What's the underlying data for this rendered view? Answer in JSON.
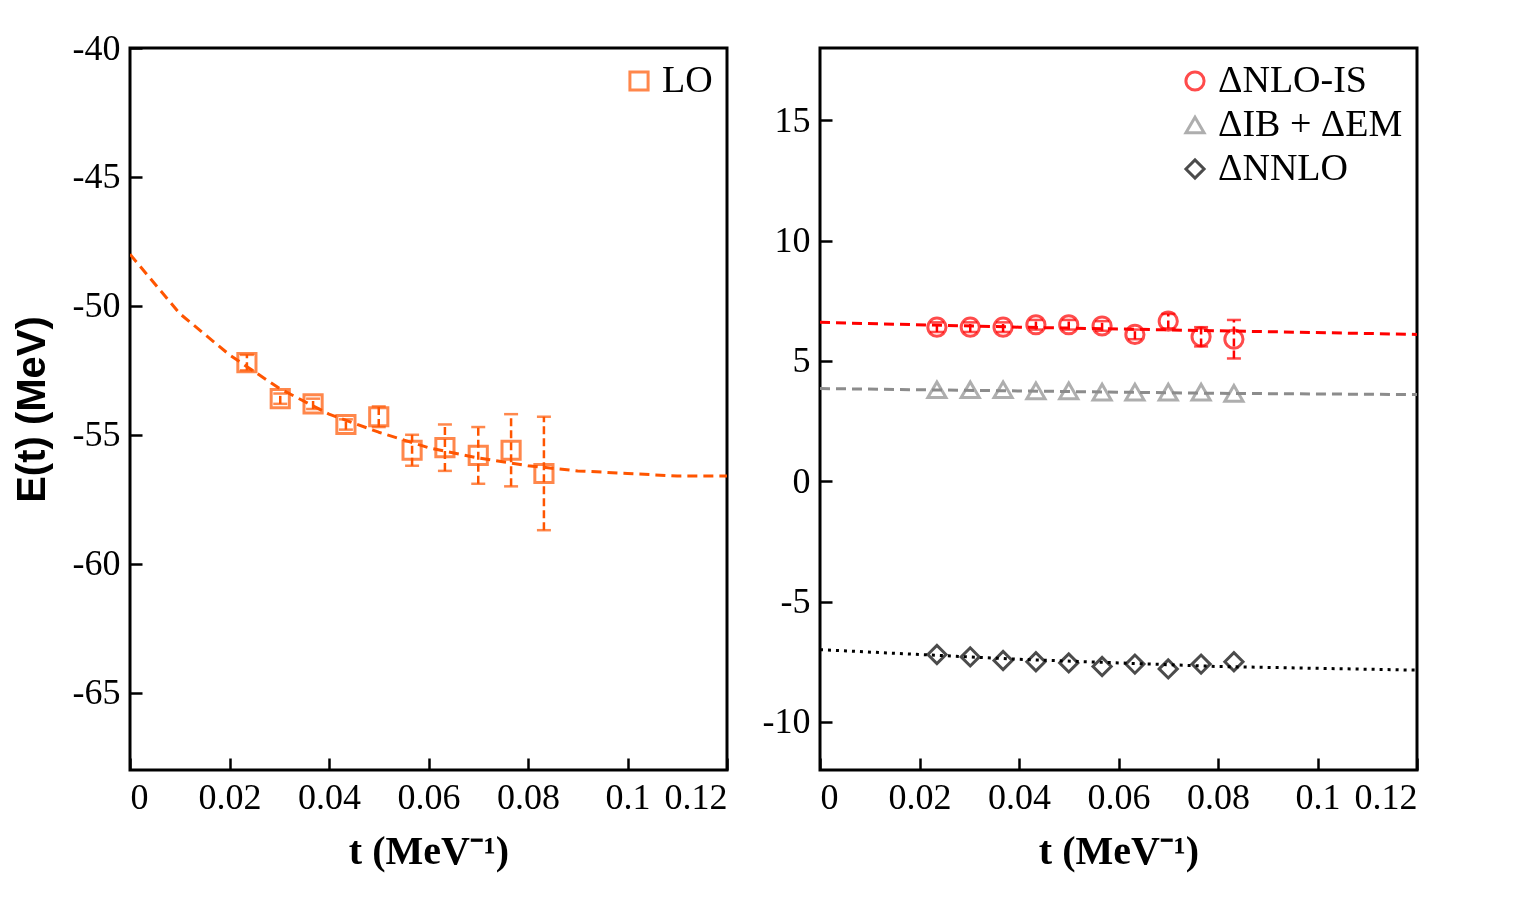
{
  "chart_data": [
    {
      "type": "scatter",
      "xlabel": "t (MeV⁻¹)",
      "ylabel": "E(t) (MeV)",
      "xlim": [
        0,
        0.12
      ],
      "xticks": [
        0,
        0.02,
        0.04,
        0.06,
        0.08,
        0.1,
        0.12
      ],
      "ylim": [
        -68,
        -40
      ],
      "yticks": [
        -65,
        -60,
        -55,
        -50,
        -45,
        -40
      ],
      "grid": false,
      "legend": "top right",
      "x": [
        0.0235,
        0.0302,
        0.0368,
        0.0434,
        0.05,
        0.0567,
        0.0633,
        0.07,
        0.0766,
        0.0832
      ],
      "series": [
        {
          "name": "LO",
          "color": "#ff5500",
          "marker": "square",
          "line_style": "dashed",
          "values": [
            -52.2,
            -53.6,
            -53.8,
            -54.6,
            -54.3,
            -55.6,
            -55.5,
            -55.8,
            -55.6,
            -56.5
          ],
          "errors": [
            0.3,
            0.2,
            0.2,
            0.2,
            0.4,
            0.6,
            0.9,
            1.1,
            1.4,
            2.2
          ]
        },
        {
          "type": "line",
          "color": "#ff5500",
          "line_style": "dashed",
          "x": [
            0,
            0.01,
            0.02,
            0.03,
            0.04,
            0.05,
            0.06,
            0.07,
            0.08,
            0.09,
            0.1,
            0.11,
            0.12
          ],
          "values": [
            -48.0,
            -50.3,
            -51.9,
            -53.2,
            -54.2,
            -54.9,
            -55.5,
            -55.9,
            -56.2,
            -56.4,
            -56.5,
            -56.6,
            -56.6
          ]
        }
      ]
    },
    {
      "type": "scatter",
      "xlabel": "t (MeV⁻¹)",
      "xlim": [
        0,
        0.12
      ],
      "xticks": [
        0,
        0.02,
        0.04,
        0.06,
        0.08,
        0.1,
        0.12
      ],
      "ylim": [
        -12,
        18
      ],
      "yticks": [
        -10,
        -5,
        0,
        5,
        10,
        15
      ],
      "grid": false,
      "legend": "top right",
      "x": [
        0.0235,
        0.0302,
        0.0368,
        0.0434,
        0.05,
        0.0567,
        0.0633,
        0.07,
        0.0766,
        0.0832
      ],
      "series": [
        {
          "name": "ΔNLO-IS",
          "color": "#ff0000",
          "marker": "circle",
          "line_style": "dashed",
          "values": [
            6.4,
            6.4,
            6.4,
            6.5,
            6.5,
            6.45,
            6.1,
            6.65,
            6.0,
            5.9
          ],
          "errors": [
            0.2,
            0.2,
            0.2,
            0.2,
            0.2,
            0.2,
            0.2,
            0.3,
            0.4,
            0.8
          ]
        },
        {
          "name": "ΔIB + ΔEM",
          "color": "#8c8c8c",
          "marker": "triangle",
          "line_style": "dashed",
          "values": [
            3.8,
            3.8,
            3.8,
            3.75,
            3.75,
            3.7,
            3.7,
            3.7,
            3.7,
            3.65
          ]
        },
        {
          "name": "ΔNNLO",
          "color": "#000000",
          "marker": "diamond",
          "line_style": "dotted",
          "values": [
            -7.2,
            -7.3,
            -7.45,
            -7.5,
            -7.55,
            -7.7,
            -7.6,
            -7.8,
            -7.6,
            -7.5
          ]
        },
        {
          "type": "line",
          "color": "#ff0000",
          "line_style": "dashed",
          "x": [
            0,
            0.04,
            0.08,
            0.12
          ],
          "values": [
            6.6,
            6.4,
            6.25,
            6.1
          ]
        },
        {
          "type": "line",
          "color": "#8c8c8c",
          "line_style": "dashed",
          "x": [
            0,
            0.04,
            0.08,
            0.12
          ],
          "values": [
            3.85,
            3.75,
            3.65,
            3.6
          ]
        },
        {
          "type": "line",
          "color": "#000000",
          "line_style": "dotted",
          "x": [
            0,
            0.04,
            0.08,
            0.12
          ],
          "values": [
            -7.0,
            -7.4,
            -7.7,
            -7.85
          ]
        }
      ]
    }
  ]
}
